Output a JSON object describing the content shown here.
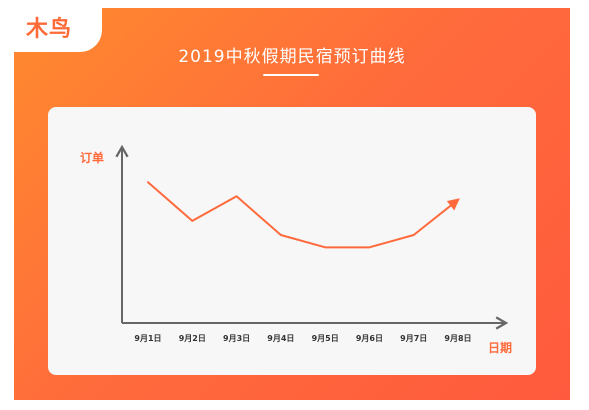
{
  "logo": {
    "text": "木鸟"
  },
  "header": {
    "title": "2019中秋假期民宿预订曲线"
  },
  "colors": {
    "gradient_start": "#ff8a2e",
    "gradient_end": "#ff5a3d",
    "line": "#ff6a3c",
    "axis": "#666666",
    "panel": "#f7f7f7"
  },
  "chart_data": {
    "type": "line",
    "title": "2019中秋假期民宿预订曲线",
    "xlabel": "日期",
    "ylabel": "订单",
    "categories": [
      "9月1日",
      "9月2日",
      "9月3日",
      "9月4日",
      "9月5日",
      "9月6日",
      "9月7日",
      "9月8日"
    ],
    "values": [
      80,
      58,
      72,
      50,
      43,
      43,
      50,
      70
    ],
    "ylim": [
      0,
      100
    ],
    "grid": false,
    "legend": "none",
    "line_end_arrow": true
  }
}
